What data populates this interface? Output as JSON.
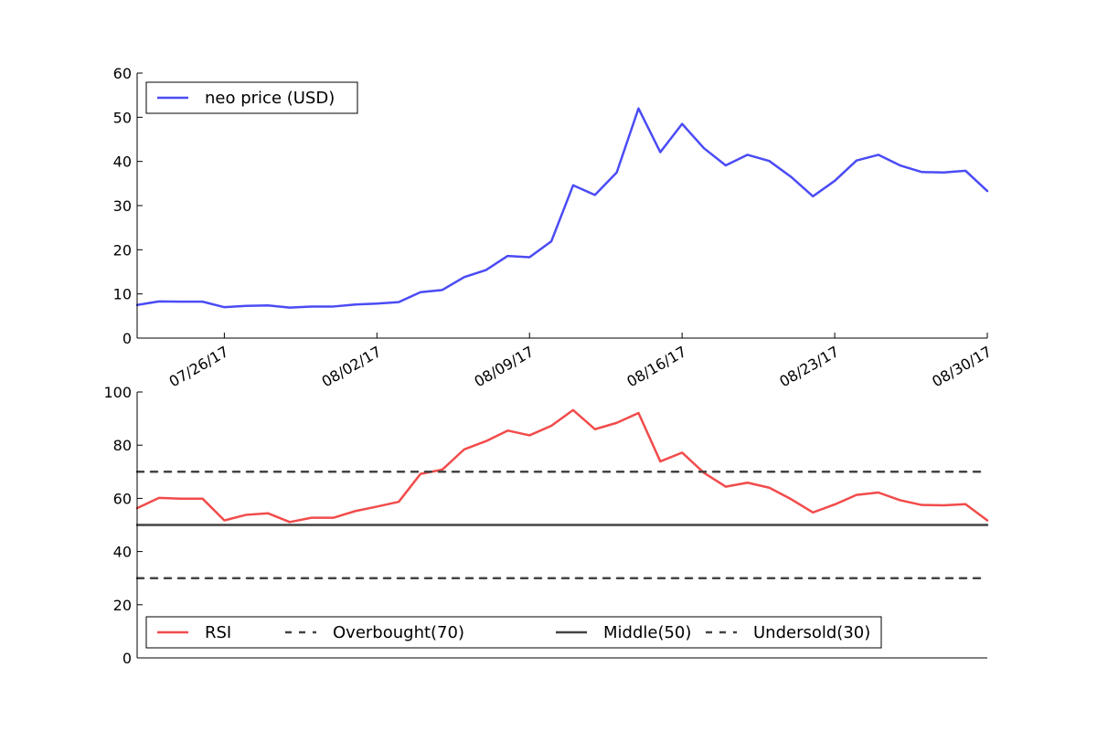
{
  "chart_data": [
    {
      "type": "line",
      "x": [
        "07/22/17",
        "07/23/17",
        "07/24/17",
        "07/25/17",
        "07/26/17",
        "07/27/17",
        "07/28/17",
        "07/29/17",
        "07/30/17",
        "07/31/17",
        "08/01/17",
        "08/02/17",
        "08/03/17",
        "08/04/17",
        "08/05/17",
        "08/06/17",
        "08/07/17",
        "08/08/17",
        "08/09/17",
        "08/10/17",
        "08/11/17",
        "08/12/17",
        "08/13/17",
        "08/14/17",
        "08/15/17",
        "08/16/17",
        "08/17/17",
        "08/18/17",
        "08/19/17",
        "08/20/17",
        "08/21/17",
        "08/22/17",
        "08/23/17",
        "08/24/17",
        "08/25/17",
        "08/26/17",
        "08/27/17",
        "08/28/17",
        "08/29/17",
        "08/30/17"
      ],
      "series": [
        {
          "name": "neo price (USD)",
          "color": "#4b4bf5",
          "values": [
            7.5,
            8.3,
            8.25,
            8.25,
            7.0,
            7.3,
            7.4,
            6.9,
            7.15,
            7.15,
            7.6,
            7.8,
            8.15,
            10.4,
            10.9,
            13.8,
            15.4,
            18.6,
            18.3,
            21.9,
            34.6,
            32.4,
            37.5,
            52.0,
            42.1,
            48.5,
            43.0,
            39.1,
            41.5,
            40.1,
            36.5,
            32.1,
            35.6,
            40.2,
            41.5,
            39.1,
            37.6,
            37.5,
            37.9,
            33.3
          ]
        }
      ],
      "x_ticks": [
        "07/26/17",
        "08/02/17",
        "08/09/17",
        "08/16/17",
        "08/23/17",
        "08/30/17"
      ],
      "ylim": [
        0,
        60
      ],
      "y_ticks": [
        0,
        10,
        20,
        30,
        40,
        50,
        60
      ],
      "grid": false,
      "legend": "top-left"
    },
    {
      "type": "line",
      "x": [
        "07/22/17",
        "07/23/17",
        "07/24/17",
        "07/25/17",
        "07/26/17",
        "07/27/17",
        "07/28/17",
        "07/29/17",
        "07/30/17",
        "07/31/17",
        "08/01/17",
        "08/02/17",
        "08/03/17",
        "08/04/17",
        "08/05/17",
        "08/06/17",
        "08/07/17",
        "08/08/17",
        "08/09/17",
        "08/10/17",
        "08/11/17",
        "08/12/17",
        "08/13/17",
        "08/14/17",
        "08/15/17",
        "08/16/17",
        "08/17/17",
        "08/18/17",
        "08/19/17",
        "08/20/17",
        "08/21/17",
        "08/22/17",
        "08/23/17",
        "08/24/17",
        "08/25/17",
        "08/26/17",
        "08/27/17",
        "08/28/17",
        "08/29/17",
        "08/30/17"
      ],
      "series": [
        {
          "name": "RSI",
          "color": "#f24b4b",
          "style": "solid",
          "values": [
            56.3,
            60.2,
            59.9,
            59.9,
            51.7,
            53.8,
            54.4,
            51.1,
            52.7,
            52.7,
            55.2,
            56.9,
            58.7,
            69.2,
            70.8,
            78.4,
            81.5,
            85.5,
            83.7,
            87.3,
            93.2,
            86.0,
            88.4,
            92.1,
            73.9,
            77.2,
            69.6,
            64.4,
            65.9,
            64.0,
            59.7,
            54.7,
            57.7,
            61.3,
            62.2,
            59.3,
            57.5,
            57.4,
            57.8,
            51.7
          ]
        },
        {
          "name": "Overbought(70)",
          "color": "#444444",
          "style": "dashed",
          "values": [
            70,
            70,
            70,
            70,
            70,
            70,
            70,
            70,
            70,
            70,
            70,
            70,
            70,
            70,
            70,
            70,
            70,
            70,
            70,
            70,
            70,
            70,
            70,
            70,
            70,
            70,
            70,
            70,
            70,
            70,
            70,
            70,
            70,
            70,
            70,
            70,
            70,
            70,
            70,
            70
          ]
        },
        {
          "name": "Middle(50)",
          "color": "#444444",
          "style": "solid",
          "values": [
            50,
            50,
            50,
            50,
            50,
            50,
            50,
            50,
            50,
            50,
            50,
            50,
            50,
            50,
            50,
            50,
            50,
            50,
            50,
            50,
            50,
            50,
            50,
            50,
            50,
            50,
            50,
            50,
            50,
            50,
            50,
            50,
            50,
            50,
            50,
            50,
            50,
            50,
            50,
            50
          ]
        },
        {
          "name": "Undersold(30)",
          "color": "#444444",
          "style": "dashed",
          "values": [
            30,
            30,
            30,
            30,
            30,
            30,
            30,
            30,
            30,
            30,
            30,
            30,
            30,
            30,
            30,
            30,
            30,
            30,
            30,
            30,
            30,
            30,
            30,
            30,
            30,
            30,
            30,
            30,
            30,
            30,
            30,
            30,
            30,
            30,
            30,
            30,
            30,
            30,
            30,
            30
          ]
        }
      ],
      "ylim": [
        0,
        100
      ],
      "y_ticks": [
        0,
        20,
        40,
        60,
        80,
        100
      ],
      "grid": false,
      "legend": "bottom-left"
    }
  ]
}
